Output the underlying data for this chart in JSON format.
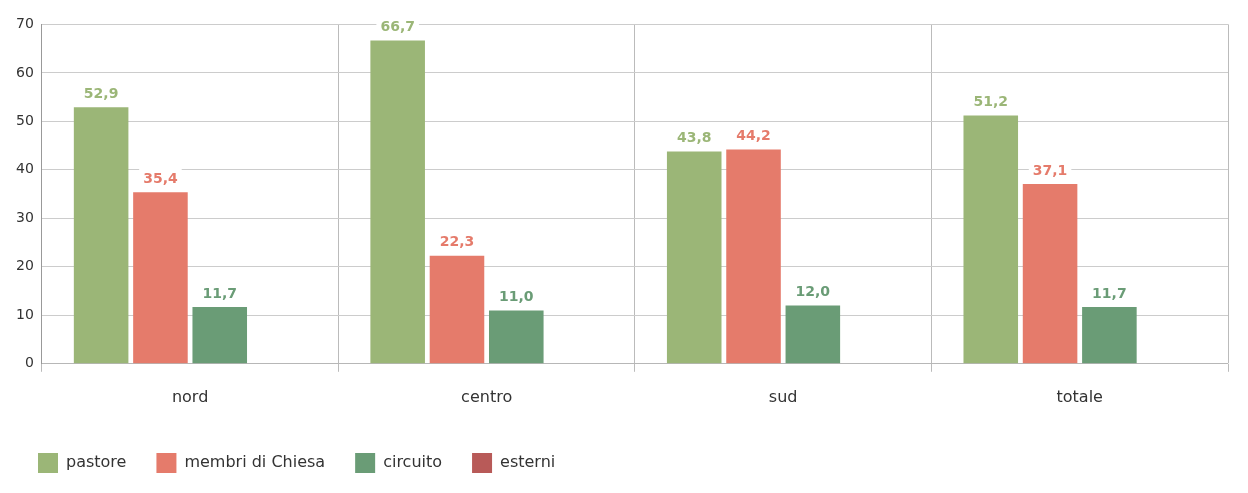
{
  "chart_data": {
    "type": "bar",
    "categories": [
      "nord",
      "centro",
      "sud",
      "totale"
    ],
    "series": [
      {
        "name": "pastore",
        "color": "#9bb677",
        "values": [
          52.9,
          66.7,
          43.8,
          51.2
        ],
        "value_labels": [
          "52,9",
          "66,7",
          "43,8",
          "51,2"
        ]
      },
      {
        "name": "membri di Chiesa",
        "color": "#e57b6b",
        "values": [
          35.4,
          22.3,
          44.2,
          37.1
        ],
        "value_labels": [
          "35,4",
          "22,3",
          "44,2",
          "37,1"
        ]
      },
      {
        "name": "circuito",
        "color": "#6a9c76",
        "values": [
          11.7,
          11.0,
          12.0,
          11.7
        ],
        "value_labels": [
          "11,7",
          "11,0",
          "12,0",
          "11,7"
        ]
      },
      {
        "name": "esterni",
        "color": "#b85a58",
        "values": [
          0,
          0,
          0,
          0
        ],
        "value_labels": [
          null,
          null,
          null,
          null
        ]
      }
    ],
    "ylim": [
      0,
      70
    ],
    "yticks": [
      0,
      10,
      20,
      30,
      40,
      50,
      60,
      70
    ],
    "grid": true,
    "legend": "bottom left"
  }
}
